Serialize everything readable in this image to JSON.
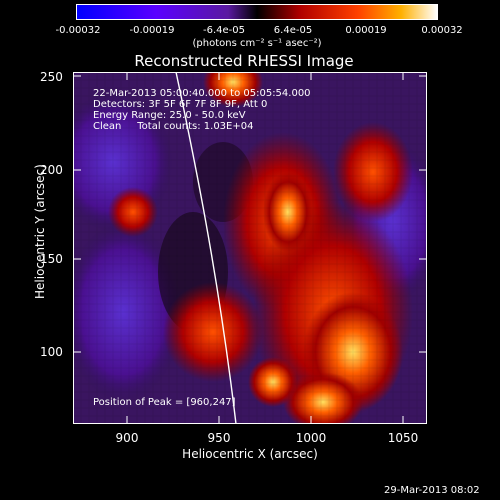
{
  "colorbar": {
    "ticks": [
      "-0.00032",
      "-0.00019",
      "-6.4e-05",
      "6.4e-05",
      "0.00019",
      "0.00032"
    ],
    "units": "(photons cm⁻² s⁻¹ asec⁻²)"
  },
  "title": "Reconstructed RHESSI Image",
  "info": {
    "time": "22-Mar-2013 05:00:40.000 to 05:05:54.000",
    "detectors": "Detectors: 3F 5F 6F 7F 8F 9F, Att 0",
    "energy": "Energy Range: 25.0 - 50.0 keV",
    "clean": "Clean     Total counts: 1.03E+04"
  },
  "peak": "Position of Peak = [960,247]",
  "axes": {
    "x_ticks": [
      "900",
      "950",
      "1000",
      "1050"
    ],
    "y_ticks": [
      "250",
      "200",
      "150",
      "100"
    ],
    "xlabel": "Heliocentric X (arcsec)",
    "ylabel": "Heliocentric Y (arcsec)",
    "x_range": [
      870,
      1062
    ],
    "y_range": [
      57,
      253
    ]
  },
  "timestamp": "29-Mar-2013 08:02"
}
